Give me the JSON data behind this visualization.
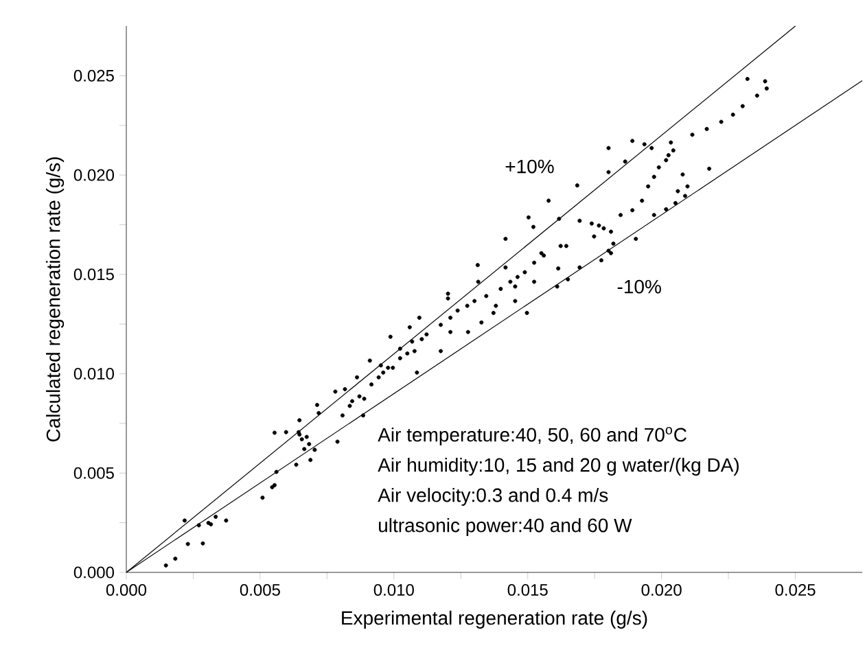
{
  "chart_data": {
    "type": "scatter",
    "xlabel": "Experimental regeneration rate (g/s)",
    "ylabel": "Calculated regeneration rate (g/s)",
    "xlim": [
      0,
      0.0275
    ],
    "ylim": [
      0,
      0.0275
    ],
    "xticks": [
      {
        "value": 0,
        "label": "0.000"
      },
      {
        "value": 0.0025,
        "label": null
      },
      {
        "value": 0.005,
        "label": "0.005"
      },
      {
        "value": 0.0075,
        "label": null
      },
      {
        "value": 0.01,
        "label": "0.010"
      },
      {
        "value": 0.0125,
        "label": null
      },
      {
        "value": 0.015,
        "label": "0.015"
      },
      {
        "value": 0.0175,
        "label": null
      },
      {
        "value": 0.02,
        "label": "0.020"
      },
      {
        "value": 0.0225,
        "label": null
      },
      {
        "value": 0.025,
        "label": "0.025"
      }
    ],
    "yticks": [
      {
        "value": 0,
        "label": "0.000"
      },
      {
        "value": 0.0025,
        "label": null
      },
      {
        "value": 0.005,
        "label": "0.005"
      },
      {
        "value": 0.0075,
        "label": null
      },
      {
        "value": 0.01,
        "label": "0.010"
      },
      {
        "value": 0.0125,
        "label": null
      },
      {
        "value": 0.015,
        "label": "0.015"
      },
      {
        "value": 0.0175,
        "label": null
      },
      {
        "value": 0.02,
        "label": "0.020"
      },
      {
        "value": 0.0225,
        "label": null
      },
      {
        "value": 0.025,
        "label": "0.025"
      }
    ],
    "grid": false,
    "series": [
      {
        "color": "#000000",
        "marker": "circle",
        "x": [
          0.00218,
          0.00271,
          0.00307,
          0.00316,
          0.00334,
          0.00373,
          0.00286,
          0.00148,
          0.00183,
          0.0023,
          0.00509,
          0.00545,
          0.00554,
          0.00561,
          0.00635,
          0.00688,
          0.00704,
          0.00789,
          0.00554,
          0.00597,
          0.00644,
          0.00656,
          0.00674,
          0.00683,
          0.00665,
          0.00647,
          0.00647,
          0.00713,
          0.00719,
          0.00781,
          0.00817,
          0.00862,
          0.00808,
          0.00835,
          0.00844,
          0.00871,
          0.00889,
          0.00885,
          0.00916,
          0.00943,
          0.0096,
          0.0091,
          0.00951,
          0.00978,
          0.00987,
          0.00996,
          0.01023,
          0.01023,
          0.0105,
          0.01059,
          0.01068,
          0.01077,
          0.01095,
          0.01104,
          0.01086,
          0.01122,
          0.01175,
          0.01175,
          0.01202,
          0.01202,
          0.01211,
          0.01211,
          0.01238,
          0.01274,
          0.01277,
          0.01301,
          0.01313,
          0.01315,
          0.01327,
          0.01345,
          0.01372,
          0.01381,
          0.01399,
          0.01417,
          0.01417,
          0.01435,
          0.01453,
          0.01462,
          0.01453,
          0.01489,
          0.01497,
          0.01524,
          0.01524,
          0.01551,
          0.0156,
          0.01503,
          0.01521,
          0.01578,
          0.01617,
          0.01623,
          0.01644,
          0.01614,
          0.0161,
          0.0165,
          0.01694,
          0.01685,
          0.01694,
          0.01739,
          0.01748,
          0.01766,
          0.01784,
          0.01811,
          0.0182,
          0.01802,
          0.01811,
          0.01775,
          0.01802,
          0.01802,
          0.01847,
          0.01864,
          0.01891,
          0.01891,
          0.01904,
          0.01927,
          0.01936,
          0.0195,
          0.01963,
          0.01972,
          0.0199,
          0.02017,
          0.02035,
          0.02026,
          0.02044,
          0.02061,
          0.02079,
          0.02097,
          0.02088,
          0.02052,
          0.02017,
          0.01972,
          0.02115,
          0.02169,
          0.02178,
          0.02223,
          0.02267,
          0.02303,
          0.02321,
          0.02357,
          0.02387,
          0.02393
        ],
        "values": [
          0.00261,
          0.00237,
          0.00249,
          0.00242,
          0.0028,
          0.00261,
          0.00146,
          0.00035,
          0.00069,
          0.00143,
          0.00376,
          0.00429,
          0.00439,
          0.00506,
          0.00542,
          0.00566,
          0.00617,
          0.00658,
          0.00703,
          0.00706,
          0.00706,
          0.0067,
          0.00682,
          0.00646,
          0.00621,
          0.00694,
          0.00766,
          0.00843,
          0.00802,
          0.0091,
          0.00922,
          0.00982,
          0.0079,
          0.00838,
          0.00862,
          0.00886,
          0.00874,
          0.0079,
          0.00946,
          0.00982,
          0.01006,
          0.01066,
          0.01042,
          0.0103,
          0.01186,
          0.0103,
          0.01126,
          0.01078,
          0.01102,
          0.01234,
          0.01162,
          0.01114,
          0.01282,
          0.01174,
          0.01006,
          0.01198,
          0.01114,
          0.01246,
          0.01403,
          0.01379,
          0.01282,
          0.0121,
          0.01318,
          0.01342,
          0.0121,
          0.01366,
          0.01547,
          0.01463,
          0.01258,
          0.01391,
          0.01306,
          0.01342,
          0.01427,
          0.01535,
          0.01679,
          0.01463,
          0.01439,
          0.01487,
          0.01366,
          0.01511,
          0.01306,
          0.01559,
          0.01463,
          0.01607,
          0.01595,
          0.01787,
          0.01739,
          0.01871,
          0.0178,
          0.01643,
          0.01643,
          0.0153,
          0.01439,
          0.01475,
          0.01535,
          0.01948,
          0.0177,
          0.01756,
          0.01691,
          0.01746,
          0.01732,
          0.01715,
          0.01655,
          0.01619,
          0.01607,
          0.01571,
          0.02015,
          0.02136,
          0.01799,
          0.02068,
          0.01823,
          0.02172,
          0.01679,
          0.01871,
          0.02155,
          0.01943,
          0.02136,
          0.01991,
          0.02039,
          0.02075,
          0.02164,
          0.021,
          0.02124,
          0.01919,
          0.02003,
          0.01943,
          0.01895,
          0.01859,
          0.01828,
          0.01799,
          0.02203,
          0.02232,
          0.02032,
          0.02268,
          0.02304,
          0.02347,
          0.02484,
          0.024,
          0.02472,
          0.02436
        ]
      },
      {
        "type": "line",
        "color": "#000000",
        "marker": "none",
        "line_style": "solid",
        "x": [
          0,
          0.025
        ],
        "values": [
          0,
          0.0275
        ]
      },
      {
        "type": "line",
        "color": "#000000",
        "marker": "none",
        "line_style": "solid",
        "x": [
          0,
          0.0275
        ],
        "values": [
          0,
          0.02475
        ]
      }
    ],
    "annotations": [
      "+10%",
      "-10%",
      "Air temperature:40, 50, 60 and 70$^{o}$C",
      "Air humidity:10, 15 and 20 g water/(kg DA)",
      "Air velocity:0.3 and 0.4 m/s",
      "ultrasonic power:40 and 60 W"
    ]
  }
}
